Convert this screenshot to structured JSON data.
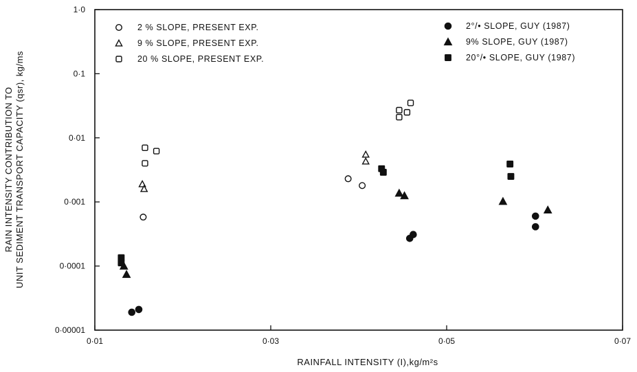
{
  "chart_data": {
    "type": "scatter",
    "title": "",
    "xlabel": "RAINFALL INTENSITY (I),kg/m²s",
    "ylabel_line1": "RAIN INTENSITY CONTRIBUTION TO",
    "ylabel_line2": "UNIT SEDIMENT TRANSPORT CAPACITY (qsr), kg/ms",
    "xscale": "linear",
    "yscale": "log",
    "xlim": [
      0.01,
      0.07
    ],
    "ylim": [
      1e-05,
      1.0
    ],
    "x_ticks": [
      {
        "value": 0.01,
        "label": "0·01"
      },
      {
        "value": 0.03,
        "label": "0·03"
      },
      {
        "value": 0.05,
        "label": "0·05"
      },
      {
        "value": 0.07,
        "label": "0·07"
      }
    ],
    "y_ticks": [
      {
        "value": 1.0,
        "label": "1·0"
      },
      {
        "value": 0.1,
        "label": "0·1"
      },
      {
        "value": 0.01,
        "label": "0·01"
      },
      {
        "value": 0.001,
        "label": "0·001"
      },
      {
        "value": 0.0001,
        "label": "0·0001"
      },
      {
        "value": 1e-05,
        "label": "0·00001"
      }
    ],
    "grid": false,
    "legend_placement": "top-left and top-right",
    "series": [
      {
        "name": "2 % SLOPE, PRESENT EXP.",
        "marker": "circle-open",
        "points": [
          [
            0.0155,
            0.00058
          ],
          [
            0.0388,
            0.0023
          ],
          [
            0.0404,
            0.0018
          ]
        ]
      },
      {
        "name": "9 % SLOPE, PRESENT EXP.",
        "marker": "triangle-open",
        "points": [
          [
            0.0154,
            0.0019
          ],
          [
            0.0156,
            0.0016
          ],
          [
            0.0408,
            0.0055
          ],
          [
            0.0408,
            0.0043
          ]
        ]
      },
      {
        "name": "20 % SLOPE, PRESENT EXP.",
        "marker": "square-open",
        "points": [
          [
            0.0157,
            0.007
          ],
          [
            0.0157,
            0.004
          ],
          [
            0.017,
            0.0062
          ],
          [
            0.0446,
            0.027
          ],
          [
            0.0446,
            0.021
          ],
          [
            0.0455,
            0.025
          ],
          [
            0.0459,
            0.035
          ]
        ]
      },
      {
        "name": "2°/• SLOPE, GUY (1987)",
        "marker": "circle-filled",
        "points": [
          [
            0.0142,
            1.9e-05
          ],
          [
            0.015,
            2.1e-05
          ],
          [
            0.0458,
            0.00027
          ],
          [
            0.0462,
            0.00031
          ],
          [
            0.0601,
            0.0006
          ],
          [
            0.0601,
            0.00041
          ]
        ]
      },
      {
        "name": "9% SLOPE, GUY (1987)",
        "marker": "triangle-filled",
        "points": [
          [
            0.0133,
            0.0001
          ],
          [
            0.0136,
            7.4e-05
          ],
          [
            0.0446,
            0.00137
          ],
          [
            0.0452,
            0.00125
          ],
          [
            0.0564,
            0.00102
          ],
          [
            0.0615,
            0.00075
          ]
        ]
      },
      {
        "name": "20°/• SLOPE, GUY (1987)",
        "marker": "square-filled",
        "points": [
          [
            0.013,
            0.000135
          ],
          [
            0.013,
            0.000112
          ],
          [
            0.0426,
            0.0033
          ],
          [
            0.0428,
            0.0029
          ],
          [
            0.0572,
            0.0039
          ],
          [
            0.0573,
            0.0025
          ]
        ]
      }
    ]
  }
}
